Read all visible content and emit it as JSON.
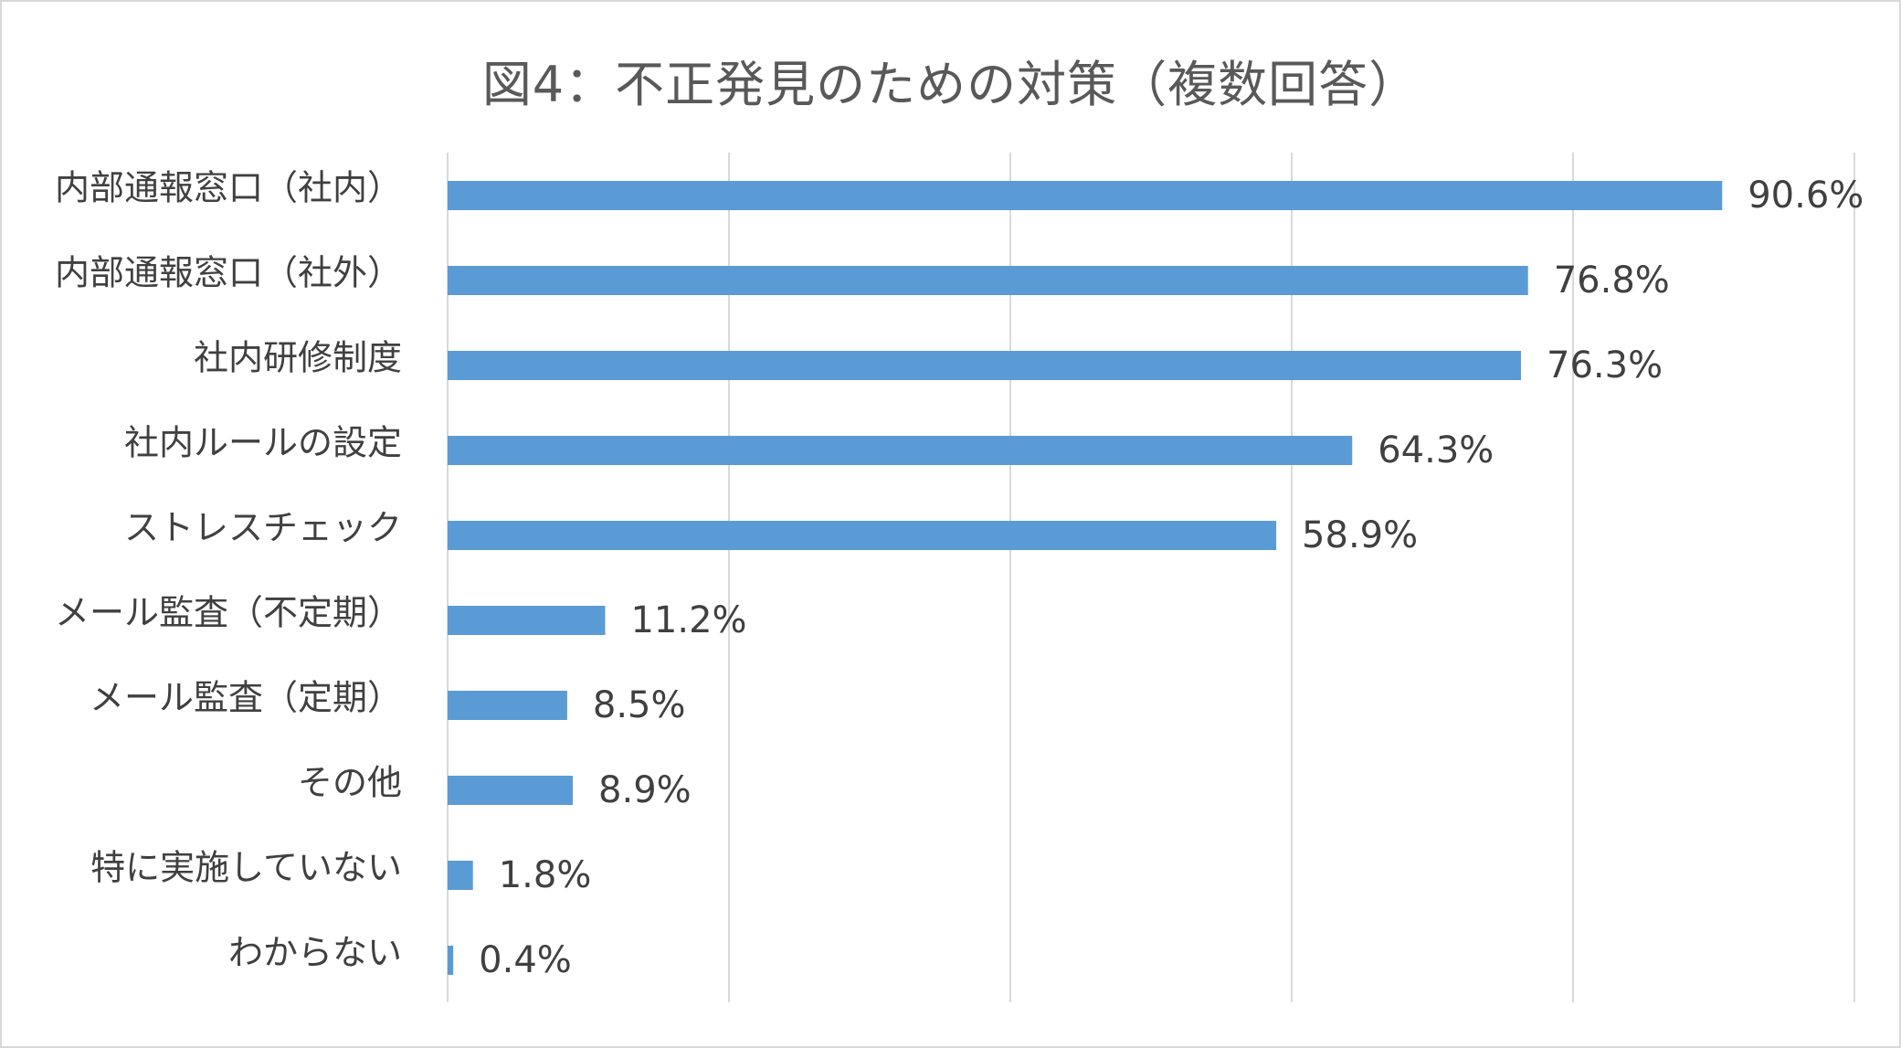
{
  "chart_data": {
    "type": "bar",
    "orientation": "horizontal",
    "title": "図4：不正発見のための対策（複数回答）",
    "categories": [
      "内部通報窓口（社内）",
      "内部通報窓口（社外）",
      "社内研修制度",
      "社内ルールの設定",
      "ストレスチェック",
      "メール監査（不定期）",
      "メール監査（定期）",
      "その他",
      "特に実施していない",
      "わからない"
    ],
    "values": [
      90.6,
      76.8,
      76.3,
      64.3,
      58.9,
      11.2,
      8.5,
      8.9,
      1.8,
      0.4
    ],
    "value_labels": [
      "90.6%",
      "76.8%",
      "76.3%",
      "64.3%",
      "58.9%",
      "11.2%",
      "8.5%",
      "8.9%",
      "1.8%",
      "0.4%"
    ],
    "xlim": [
      0,
      100
    ],
    "x_grid_step": 20,
    "grid": true,
    "legend": "none",
    "bar_color": "#5b9bd5",
    "xlabel": "",
    "ylabel": ""
  }
}
